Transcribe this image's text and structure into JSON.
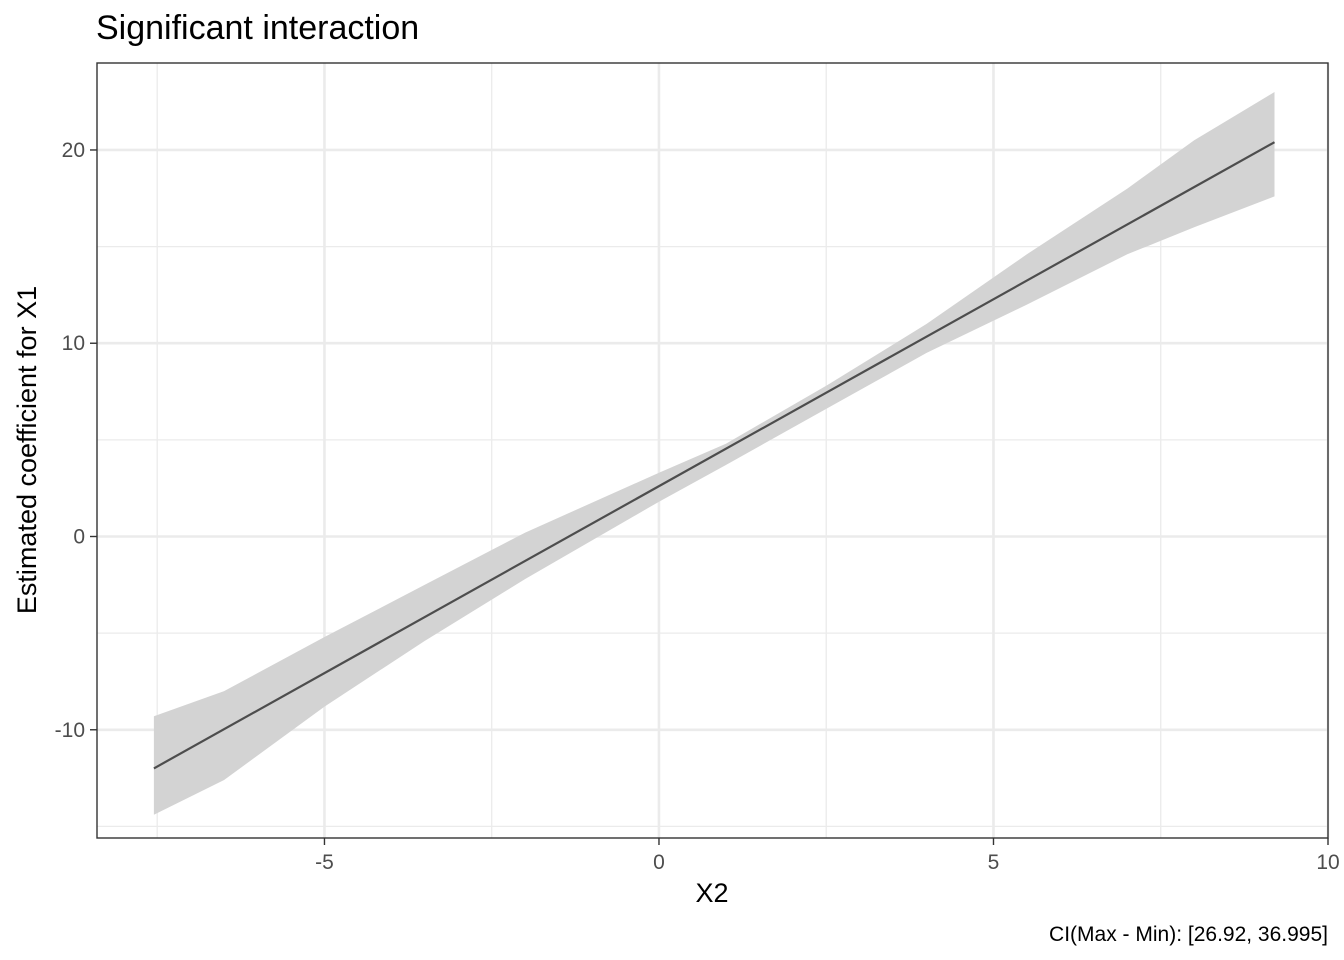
{
  "chart_data": {
    "type": "line",
    "title": "Significant interaction",
    "xlabel": "X2",
    "ylabel": "Estimated coefficient for X1",
    "caption": "CI(Max - Min): [26.92, 36.995]",
    "xlim": [
      -8.4,
      10
    ],
    "ylim": [
      -15.6,
      24.5
    ],
    "x_ticks": [
      -5,
      0,
      5,
      10
    ],
    "x_tick_labels": [
      "-5",
      "0",
      "5",
      "10"
    ],
    "x_minor": [
      -7.5,
      -2.5,
      2.5,
      7.5
    ],
    "y_ticks": [
      -10,
      0,
      10,
      20
    ],
    "y_tick_labels": [
      "-10",
      "0",
      "10",
      "20"
    ],
    "y_minor": [
      -15,
      -5,
      5,
      15
    ],
    "grid": true,
    "series": [
      {
        "type": "line",
        "color": "#4d4d4d",
        "x": [
          -7.55,
          9.2
        ],
        "y": [
          -12.0,
          20.4
        ]
      },
      {
        "type": "ribbon",
        "color": "#d3d3d3",
        "x": [
          -7.55,
          -6.5,
          -5.0,
          -3.5,
          -2.0,
          0.0,
          1.0,
          2.5,
          4.0,
          5.5,
          7.0,
          8.0,
          9.2
        ],
        "ymin": [
          -14.4,
          -12.6,
          -8.8,
          -5.4,
          -2.2,
          1.8,
          3.7,
          6.6,
          9.5,
          12.0,
          14.6,
          16.0,
          17.6
        ],
        "ymax": [
          -9.3,
          -8.0,
          -5.2,
          -2.5,
          0.2,
          3.3,
          4.8,
          7.8,
          11.0,
          14.6,
          18.0,
          20.5,
          23.0
        ]
      }
    ]
  }
}
